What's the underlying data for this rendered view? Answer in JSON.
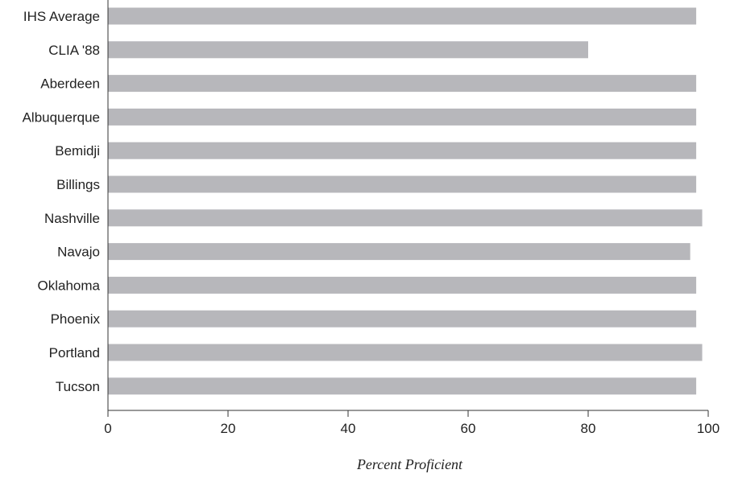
{
  "chart_data": {
    "type": "bar",
    "orientation": "horizontal",
    "categories": [
      "IHS Average",
      "CLIA '88",
      "Aberdeen",
      "Albuquerque",
      "Bemidji",
      "Billings",
      "Nashville",
      "Navajo",
      "Oklahoma",
      "Phoenix",
      "Portland",
      "Tucson"
    ],
    "values": [
      98,
      80,
      98,
      98,
      98,
      98,
      99,
      97,
      98,
      98,
      99,
      98
    ],
    "xlabel": "Percent Proficient",
    "ylabel": "",
    "xlim": [
      0,
      100
    ],
    "xticks": [
      "0",
      "20",
      "40",
      "60",
      "80",
      "100"
    ],
    "grid": false,
    "bar_color": "#b7b7bb",
    "axis_color": "#333333"
  }
}
